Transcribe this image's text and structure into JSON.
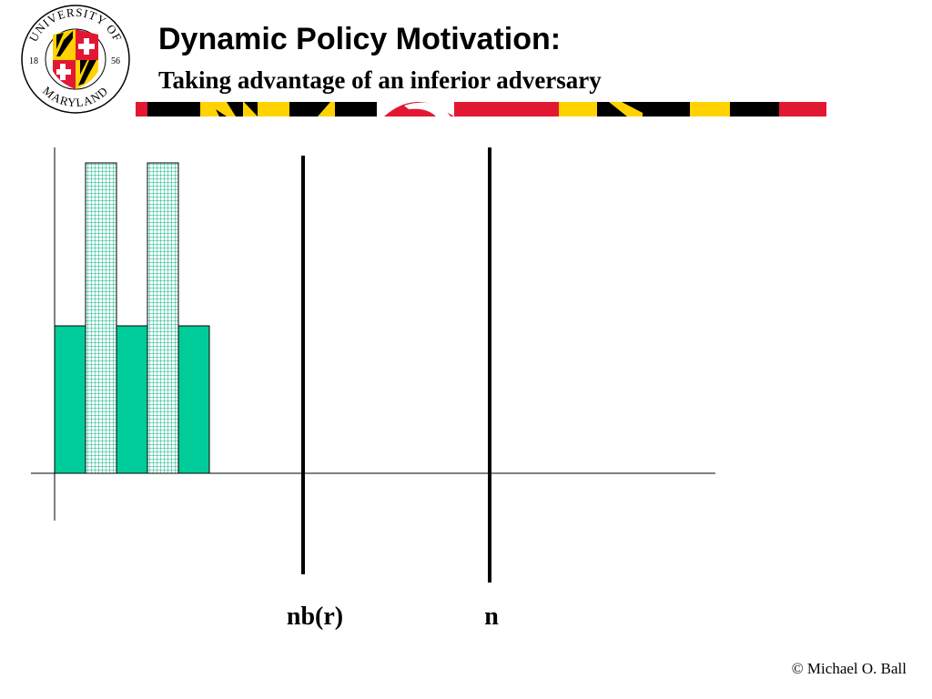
{
  "header": {
    "title": "Dynamic Policy Motivation:",
    "subtitle": "Taking advantage of an inferior adversary"
  },
  "logo": {
    "top_text": "UNIVERSITY OF",
    "bottom_text": "MARYLAND",
    "year_left": "18",
    "year_right": "56"
  },
  "diagram": {
    "markers": [
      {
        "label": "nb(r)"
      },
      {
        "label": "n"
      }
    ],
    "colors": {
      "solid_bar": "#00CC99",
      "hatched_bar": "#00CC99",
      "brand_red": "#E21833",
      "brand_gold": "#FFD200"
    }
  },
  "footer": {
    "copyright": "© Michael O. Ball"
  }
}
